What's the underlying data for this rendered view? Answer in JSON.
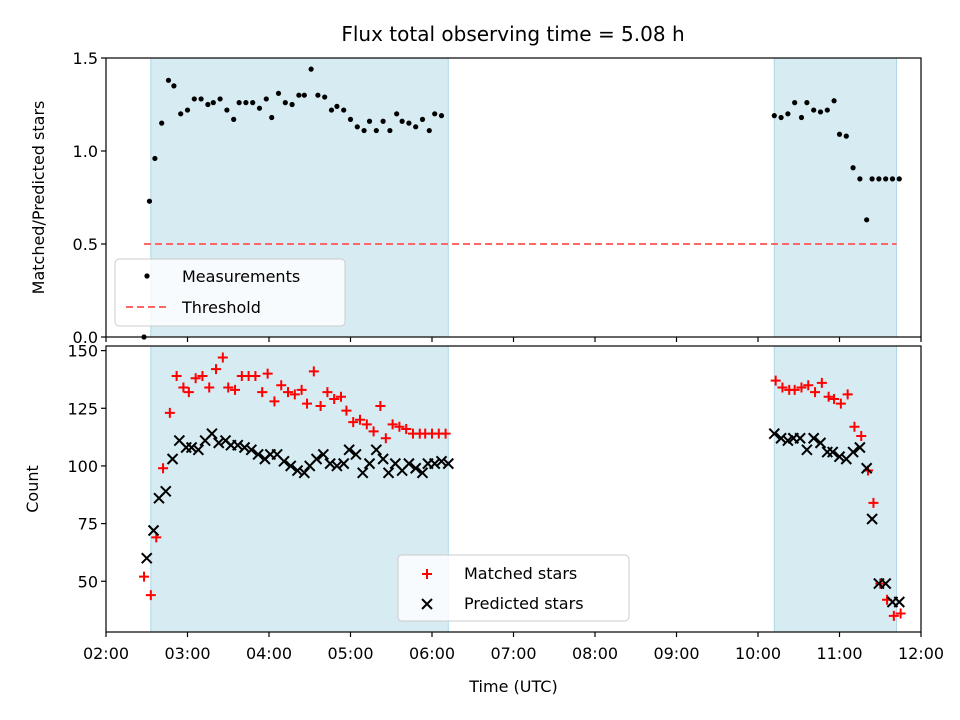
{
  "figure": {
    "title": "Flux total observing time = 5.08 h"
  },
  "colors": {
    "span": "#add8e6",
    "measurement": "#000000",
    "threshold": "#ff6666",
    "matched": "#ff0000",
    "predicted": "#000000"
  },
  "chart_data": [
    {
      "type": "scatter",
      "title": "Flux total observing time = 5.08 h",
      "xlabel": "",
      "ylabel": "Matched/Predicted stars",
      "xlim": [
        "02:00",
        "12:00"
      ],
      "ylim": [
        0,
        1.5
      ],
      "yticks": [
        0.0,
        0.5,
        1.0,
        1.5
      ],
      "xticks": [
        "02:00",
        "03:00",
        "04:00",
        "05:00",
        "06:00",
        "07:00",
        "08:00",
        "09:00",
        "10:00",
        "11:00",
        "12:00"
      ],
      "shaded_spans": [
        [
          "02:33",
          "06:12"
        ],
        [
          "10:12",
          "11:42"
        ]
      ],
      "legend": {
        "position": "lower-left",
        "entries": [
          "Measurements",
          "Threshold"
        ]
      },
      "threshold": {
        "name": "Threshold",
        "value": 0.5,
        "x_range": [
          "02:28",
          "11:42"
        ]
      },
      "series": [
        {
          "name": "Measurements",
          "x": [
            "02:28",
            "02:32",
            "02:36",
            "02:41",
            "02:46",
            "02:50",
            "02:55",
            "03:00",
            "03:05",
            "03:10",
            "03:15",
            "03:19",
            "03:24",
            "03:29",
            "03:34",
            "03:38",
            "03:43",
            "03:48",
            "03:53",
            "03:58",
            "04:02",
            "04:07",
            "04:12",
            "04:17",
            "04:22",
            "04:26",
            "04:31",
            "04:36",
            "04:41",
            "04:46",
            "04:50",
            "04:55",
            "05:00",
            "05:05",
            "05:10",
            "05:14",
            "05:19",
            "05:24",
            "05:29",
            "05:34",
            "05:38",
            "05:43",
            "05:48",
            "05:53",
            "05:58",
            "06:02",
            "06:07",
            "10:12",
            "10:17",
            "10:22",
            "10:27",
            "10:32",
            "10:36",
            "10:41",
            "10:46",
            "10:51",
            "10:56",
            "11:00",
            "11:05",
            "11:10",
            "11:15",
            "11:20",
            "11:24",
            "11:29",
            "11:34",
            "11:39",
            "11:44"
          ],
          "y": [
            0.0,
            0.73,
            0.96,
            1.15,
            1.38,
            1.35,
            1.2,
            1.22,
            1.28,
            1.28,
            1.25,
            1.26,
            1.28,
            1.22,
            1.17,
            1.26,
            1.26,
            1.26,
            1.23,
            1.28,
            1.18,
            1.31,
            1.26,
            1.25,
            1.3,
            1.3,
            1.44,
            1.3,
            1.29,
            1.22,
            1.24,
            1.22,
            1.17,
            1.13,
            1.11,
            1.16,
            1.11,
            1.16,
            1.11,
            1.2,
            1.16,
            1.15,
            1.13,
            1.17,
            1.11,
            1.2,
            1.19,
            1.19,
            1.18,
            1.2,
            1.26,
            1.18,
            1.26,
            1.22,
            1.21,
            1.22,
            1.27,
            1.09,
            1.08,
            0.91,
            0.85,
            0.63,
            0.85,
            0.85,
            0.85,
            0.85,
            0.85
          ]
        }
      ]
    },
    {
      "type": "scatter",
      "title": "",
      "xlabel": "Time (UTC)",
      "ylabel": "Count",
      "xlim": [
        "02:00",
        "12:00"
      ],
      "ylim": [
        28,
        152
      ],
      "yticks": [
        50,
        75,
        100,
        125,
        150
      ],
      "xticks": [
        "02:00",
        "03:00",
        "04:00",
        "05:00",
        "06:00",
        "07:00",
        "08:00",
        "09:00",
        "10:00",
        "11:00",
        "12:00"
      ],
      "shaded_spans": [
        [
          "02:33",
          "06:12"
        ],
        [
          "10:12",
          "11:42"
        ]
      ],
      "legend": {
        "position": "lower-center",
        "entries": [
          "Matched stars",
          "Predicted stars"
        ]
      },
      "series": [
        {
          "name": "Matched stars",
          "x": [
            "02:28",
            "02:33",
            "02:37",
            "02:42",
            "02:47",
            "02:52",
            "02:57",
            "03:01",
            "03:06",
            "03:11",
            "03:16",
            "03:21",
            "03:26",
            "03:30",
            "03:35",
            "03:40",
            "03:45",
            "03:50",
            "03:55",
            "03:59",
            "04:04",
            "04:09",
            "04:14",
            "04:19",
            "04:24",
            "04:28",
            "04:33",
            "04:38",
            "04:43",
            "04:48",
            "04:53",
            "04:57",
            "05:02",
            "05:07",
            "05:12",
            "05:17",
            "05:22",
            "05:26",
            "05:31",
            "05:36",
            "05:41",
            "05:46",
            "05:51",
            "05:55",
            "06:00",
            "06:05",
            "06:10",
            "10:13",
            "10:18",
            "10:23",
            "10:27",
            "10:32",
            "10:37",
            "10:42",
            "10:47",
            "10:52",
            "10:56",
            "11:01",
            "11:06",
            "11:11",
            "11:16",
            "11:21",
            "11:25",
            "11:30",
            "11:35",
            "11:40",
            "11:45"
          ],
          "y": [
            52,
            44,
            69,
            99,
            123,
            139,
            134,
            132,
            138,
            139,
            134,
            142,
            147,
            134,
            133,
            139,
            139,
            139,
            132,
            140,
            128,
            135,
            132,
            131,
            133,
            127,
            141,
            126,
            132,
            129,
            130,
            124,
            119,
            120,
            118,
            115,
            126,
            112,
            118,
            117,
            116,
            114,
            114,
            114,
            114,
            114,
            114,
            137,
            134,
            133,
            133,
            134,
            135,
            132,
            136,
            130,
            129,
            127,
            131,
            117,
            113,
            98,
            84,
            49,
            42,
            35,
            36
          ]
        },
        {
          "name": "Predicted stars",
          "x": [
            "02:30",
            "02:35",
            "02:39",
            "02:44",
            "02:49",
            "02:54",
            "02:59",
            "03:03",
            "03:08",
            "03:13",
            "03:18",
            "03:23",
            "03:28",
            "03:32",
            "03:37",
            "03:42",
            "03:47",
            "03:52",
            "03:57",
            "04:01",
            "04:06",
            "04:11",
            "04:16",
            "04:21",
            "04:26",
            "04:30",
            "04:35",
            "04:40",
            "04:45",
            "04:50",
            "04:55",
            "04:59",
            "05:04",
            "05:09",
            "05:14",
            "05:19",
            "05:24",
            "05:28",
            "05:33",
            "05:38",
            "05:43",
            "05:48",
            "05:53",
            "05:57",
            "06:02",
            "06:07",
            "06:12",
            "10:12",
            "10:17",
            "10:22",
            "10:26",
            "10:31",
            "10:36",
            "10:41",
            "10:46",
            "10:51",
            "10:55",
            "11:00",
            "11:05",
            "11:10",
            "11:15",
            "11:20",
            "11:24",
            "11:29",
            "11:34",
            "11:39",
            "11:44"
          ],
          "y": [
            60,
            72,
            86,
            89,
            103,
            111,
            108,
            108,
            107,
            111,
            114,
            110,
            111,
            109,
            109,
            108,
            107,
            105,
            103,
            105,
            105,
            102,
            100,
            98,
            97,
            100,
            103,
            105,
            101,
            100,
            101,
            107,
            105,
            97,
            101,
            107,
            103,
            97,
            101,
            98,
            101,
            99,
            97,
            101,
            101,
            102,
            101,
            114,
            112,
            111,
            112,
            112,
            107,
            112,
            110,
            106,
            106,
            104,
            103,
            106,
            108,
            99,
            77,
            49,
            49,
            41,
            41
          ]
        }
      ]
    }
  ]
}
